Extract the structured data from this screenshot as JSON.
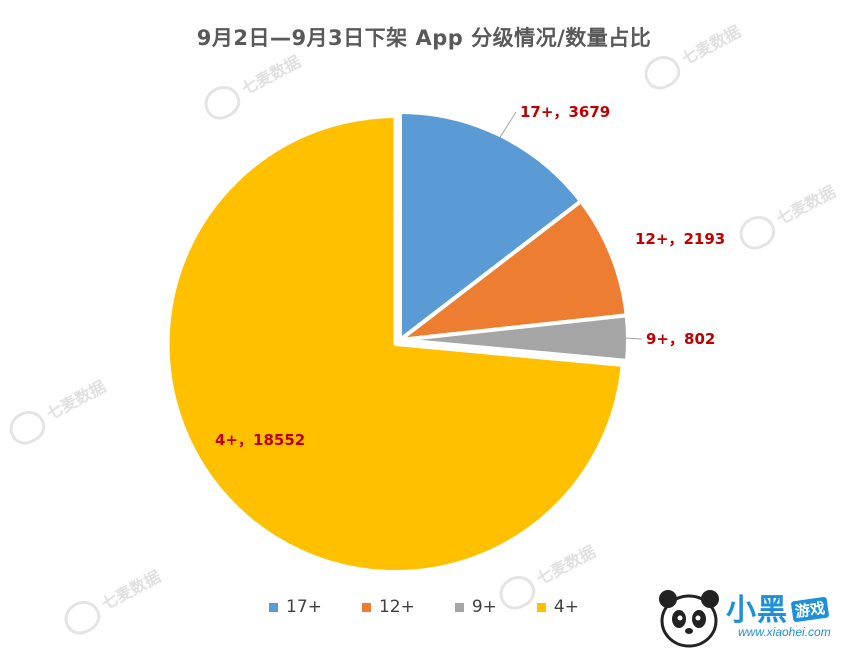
{
  "chart_data": {
    "type": "pie",
    "title": "9月2日—9月3日下架 App 分级情况/数量占比",
    "categories": [
      "17+",
      "12+",
      "9+",
      "4+"
    ],
    "values": [
      3679,
      2193,
      802,
      18552
    ],
    "data_labels": [
      "17+，3679",
      "12+，2193",
      "9+，802",
      "4+，18552"
    ],
    "colors": [
      "#5b9bd5",
      "#ed7d31",
      "#a5a5a5",
      "#ffc000"
    ],
    "label_color": "#c00000",
    "legend": {
      "position": "bottom",
      "entries": [
        "17+",
        "12+",
        "9+",
        "4+"
      ]
    }
  },
  "watermark": {
    "text": "七麦数据"
  },
  "logo": {
    "name": "小黑",
    "game": "游戏",
    "site": "www.xiaohei.com"
  }
}
